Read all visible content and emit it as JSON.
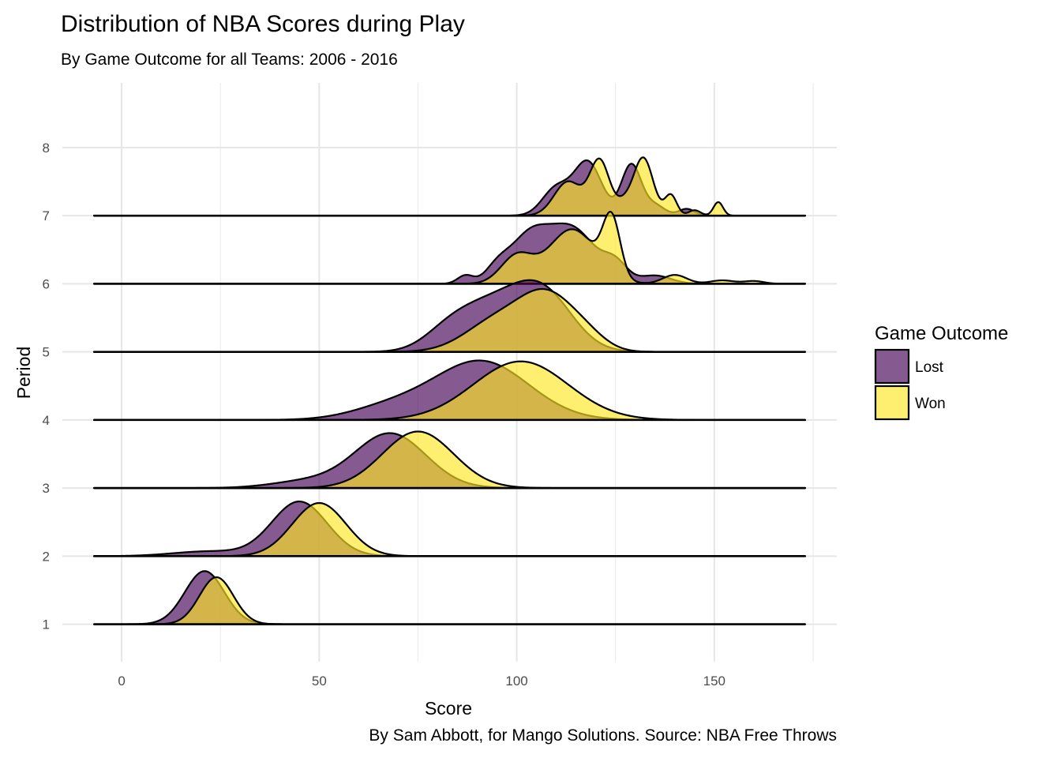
{
  "chart_data": {
    "type": "ridgeline",
    "title": "Distribution of NBA Scores during Play",
    "subtitle": "By Game Outcome for all Teams: 2006 - 2016",
    "caption": "By Sam Abbott, for Mango Solutions. Source: NBA Free Throws",
    "xlabel": "Score",
    "ylabel": "Period",
    "xlim": [
      -15,
      181
    ],
    "ylim": [
      0.45,
      8.95
    ],
    "x_ticks": [
      0,
      50,
      100,
      150
    ],
    "x_tick_labels": [
      "0",
      "50",
      "100",
      "150"
    ],
    "y_ticks": [
      1,
      2,
      3,
      4,
      5,
      6,
      7,
      8
    ],
    "y_tick_labels": [
      "1",
      "2",
      "3",
      "4",
      "5",
      "6",
      "7",
      "8"
    ],
    "grid": true,
    "baseline_range": [
      -7,
      173
    ],
    "legend": {
      "title": "Game Outcome",
      "position": "right",
      "items": [
        {
          "label": "Lost",
          "color": "#440154"
        },
        {
          "label": "Won",
          "color": "#FDE725"
        }
      ]
    },
    "fill_alpha": 0.65,
    "series": [
      {
        "name": "Lost",
        "period": 1,
        "components": [
          [
            21,
            5,
            0.78
          ]
        ]
      },
      {
        "name": "Won",
        "period": 1,
        "components": [
          [
            24,
            4.3,
            0.69
          ]
        ]
      },
      {
        "name": "Lost",
        "period": 2,
        "components": [
          [
            45,
            7,
            0.8
          ],
          [
            22,
            9,
            0.07
          ]
        ]
      },
      {
        "name": "Won",
        "period": 2,
        "components": [
          [
            50,
            6.8,
            0.78
          ]
        ]
      },
      {
        "name": "Lost",
        "period": 3,
        "components": [
          [
            68,
            9,
            0.8
          ],
          [
            47,
            9,
            0.1
          ]
        ]
      },
      {
        "name": "Won",
        "period": 3,
        "components": [
          [
            75,
            9,
            0.83
          ]
        ]
      },
      {
        "name": "Lost",
        "period": 4,
        "components": [
          [
            91,
            12,
            0.86
          ],
          [
            68,
            10,
            0.18
          ]
        ]
      },
      {
        "name": "Won",
        "period": 4,
        "components": [
          [
            101,
            12,
            0.86
          ]
        ]
      },
      {
        "name": "Lost",
        "period": 5,
        "components": [
          [
            105,
            8,
            0.85
          ],
          [
            91,
            8,
            0.55
          ],
          [
            82,
            6,
            0.18
          ],
          [
            110,
            6,
            0.1
          ]
        ]
      },
      {
        "name": "Won",
        "period": 5,
        "components": [
          [
            108,
            7,
            0.77
          ],
          [
            95,
            8,
            0.45
          ],
          [
            118,
            5,
            0.15
          ]
        ]
      },
      {
        "name": "Lost",
        "period": 6,
        "components": [
          [
            114,
            6,
            0.8
          ],
          [
            103,
            5,
            0.65
          ],
          [
            125,
            3,
            0.25
          ],
          [
            87,
            2,
            0.12
          ],
          [
            95,
            3,
            0.2
          ],
          [
            135,
            4,
            0.12
          ]
        ]
      },
      {
        "name": "Won",
        "period": 6,
        "components": [
          [
            124,
            2.2,
            0.85
          ],
          [
            114,
            6,
            0.8
          ],
          [
            100,
            4,
            0.4
          ],
          [
            140,
            3,
            0.13
          ],
          [
            152,
            3,
            0.05
          ],
          [
            160,
            2.5,
            0.04
          ]
        ]
      },
      {
        "name": "Lost",
        "period": 7,
        "components": [
          [
            118,
            3.5,
            0.78
          ],
          [
            129,
            2.5,
            0.75
          ],
          [
            110,
            3.5,
            0.4
          ],
          [
            143,
            2,
            0.1
          ],
          [
            135,
            2.5,
            0.15
          ]
        ]
      },
      {
        "name": "Won",
        "period": 7,
        "components": [
          [
            132,
            2.5,
            0.85
          ],
          [
            121,
            2.5,
            0.8
          ],
          [
            113,
            3.5,
            0.5
          ],
          [
            139,
            1.5,
            0.3
          ],
          [
            145,
            1.5,
            0.08
          ],
          [
            151,
            1.2,
            0.2
          ],
          [
            127,
            2,
            0.15
          ]
        ]
      }
    ]
  }
}
